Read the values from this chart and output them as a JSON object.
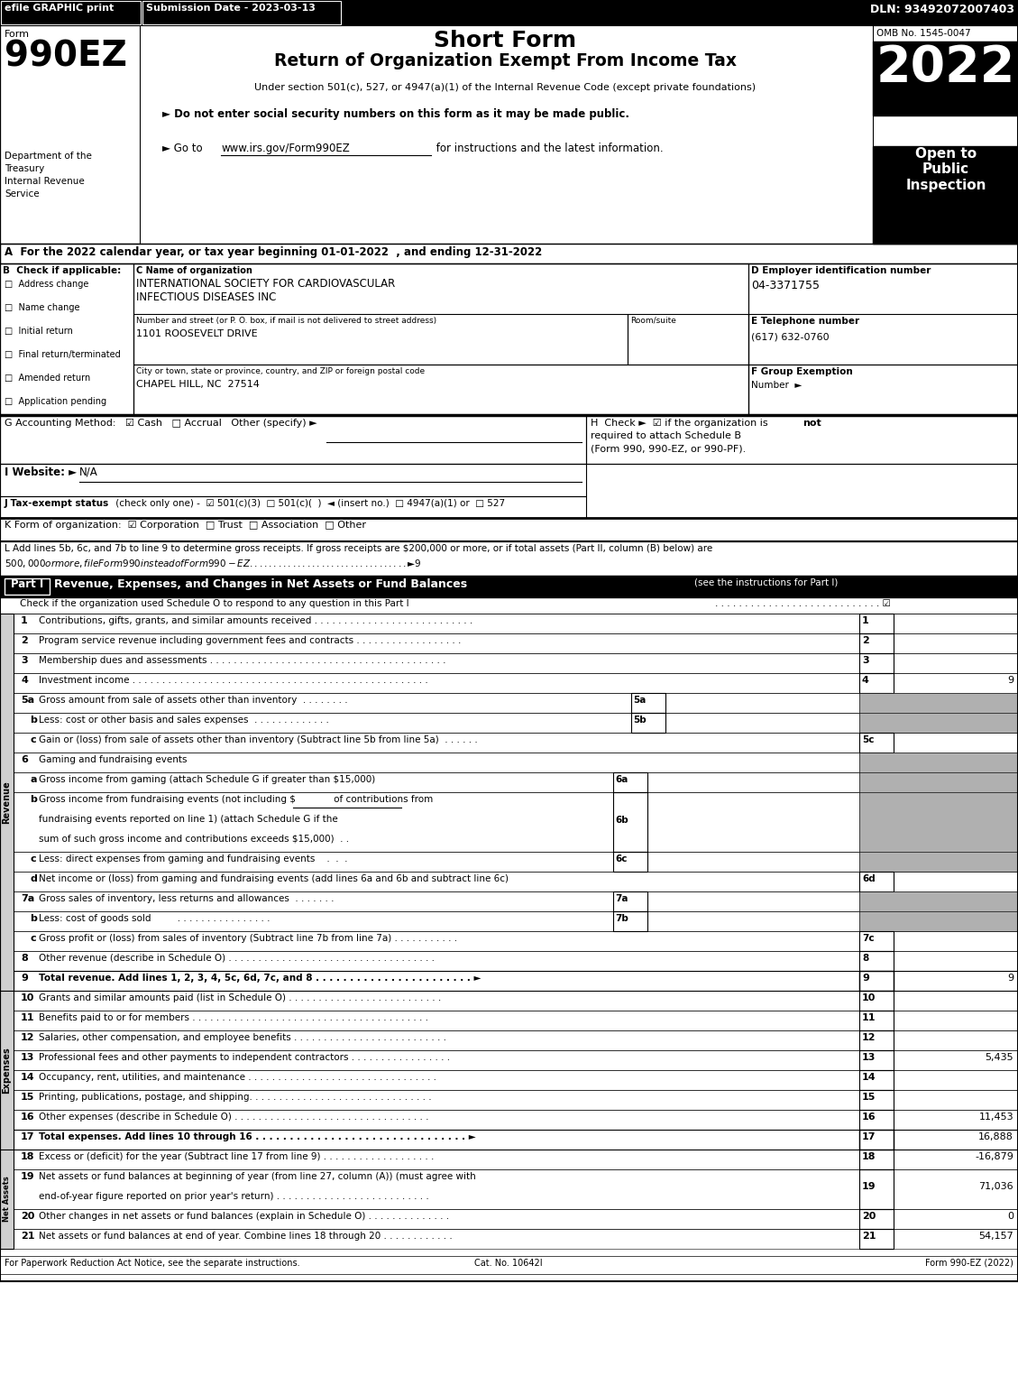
{
  "efile_text": "efile GRAPHIC print",
  "submission_text": "Submission Date - 2023-03-13",
  "dln_text": "DLN: 93492072007403",
  "form_label": "Form",
  "form_number": "990EZ",
  "title_line1": "Short Form",
  "title_line2": "Return of Organization Exempt From Income Tax",
  "subtitle": "Under section 501(c), 527, or 4947(a)(1) of the Internal Revenue Code (except private foundations)",
  "year": "2022",
  "omb": "OMB No. 1545-0047",
  "open_to": "Open to\nPublic\nInspection",
  "dept1": "Department of the",
  "dept2": "Treasury",
  "dept3": "Internal Revenue",
  "dept4": "Service",
  "bullet1": "► Do not enter social security numbers on this form as it may be made public.",
  "bullet2": "► Go to",
  "www_text": "www.irs.gov/Form990EZ",
  "bullet2b": " for instructions and the latest information.",
  "section_a": "A  For the 2022 calendar year, or tax year beginning 01-01-2022  , and ending 12-31-2022",
  "checkboxes_b": [
    "Address change",
    "Name change",
    "Initial return",
    "Final return/terminated",
    "Amended return",
    "Application pending"
  ],
  "section_c_label": "C Name of organization",
  "org_name1": "INTERNATIONAL SOCIETY FOR CARDIOVASCULAR",
  "org_name2": "INFECTIOUS DISEASES INC",
  "street_label": "Number and street (or P. O. box, if mail is not delivered to street address)",
  "street": "1101 ROOSEVELT DRIVE",
  "room_label": "Room/suite",
  "city_label": "City or town, state or province, country, and ZIP or foreign postal code",
  "city": "CHAPEL HILL, NC  27514",
  "section_d": "D Employer identification number",
  "ein": "04-3371755",
  "section_e": "E Telephone number",
  "phone": "(617) 632-0760",
  "section_f1": "F Group Exemption",
  "section_f2": "Number  ►",
  "revenue_label": "Revenue",
  "expenses_label": "Expenses",
  "net_assets_label": "Net Assets",
  "footer_left": "For Paperwork Reduction Act Notice, see the separate instructions.",
  "footer_cat": "Cat. No. 10642I",
  "footer_right": "Form 990-EZ (2022)",
  "gray_bg": "#b0b0b0",
  "light_gray": "#d0d0d0"
}
